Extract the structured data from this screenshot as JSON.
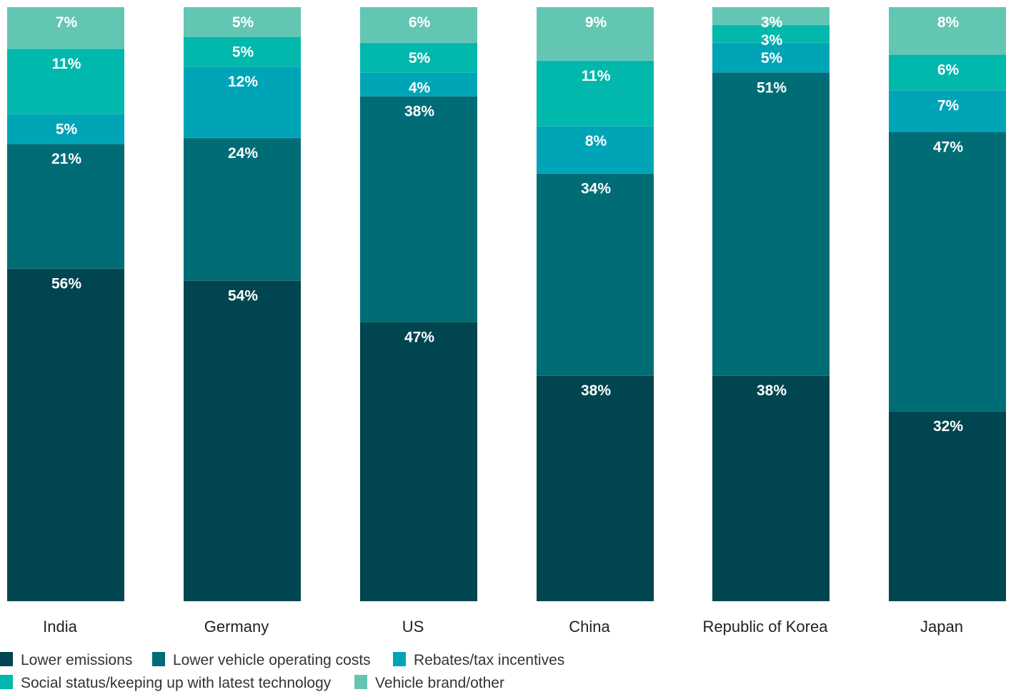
{
  "chart_data": {
    "type": "bar",
    "stacked": true,
    "normalized_to_100": true,
    "categories": [
      "India",
      "Germany",
      "US",
      "China",
      "Republic of Korea",
      "Japan"
    ],
    "series": [
      {
        "name": "Lower emissions",
        "color": "#00454f",
        "values": [
          56,
          54,
          47,
          38,
          38,
          32
        ]
      },
      {
        "name": "Lower vehicle operating costs",
        "color": "#006d76",
        "values": [
          21,
          24,
          38,
          34,
          51,
          47
        ]
      },
      {
        "name": "Rebates/tax incentives",
        "color": "#00a4b7",
        "values": [
          5,
          12,
          4,
          8,
          5,
          7
        ]
      },
      {
        "name": "Social status/keeping up with latest technology",
        "color": "#00b8ac",
        "values": [
          11,
          5,
          5,
          11,
          3,
          6
        ]
      },
      {
        "name": "Vehicle brand/other",
        "color": "#63c6b3",
        "values": [
          7,
          5,
          6,
          9,
          3,
          8
        ]
      }
    ],
    "value_suffix": "%",
    "ylim": [
      0,
      100
    ],
    "legend_position": "bottom-left",
    "grid": false
  }
}
